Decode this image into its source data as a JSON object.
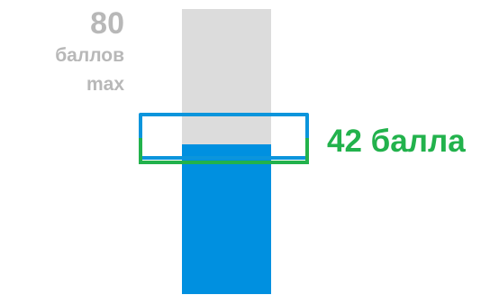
{
  "max_label": {
    "number": "80",
    "unit_line1": "баллов",
    "unit_line2": "max"
  },
  "score_label": "42 балла",
  "bar": {
    "max_value": 80,
    "value": 42,
    "fill_fraction": 0.525
  },
  "colors": {
    "bar_background": "#dcdcdc",
    "bar_fill": "#0090e0",
    "highlight_blue": "#0b95dc",
    "highlight_green": "#22b24c",
    "max_text": "#b8b8b8",
    "score_text": "#22b24c"
  }
}
